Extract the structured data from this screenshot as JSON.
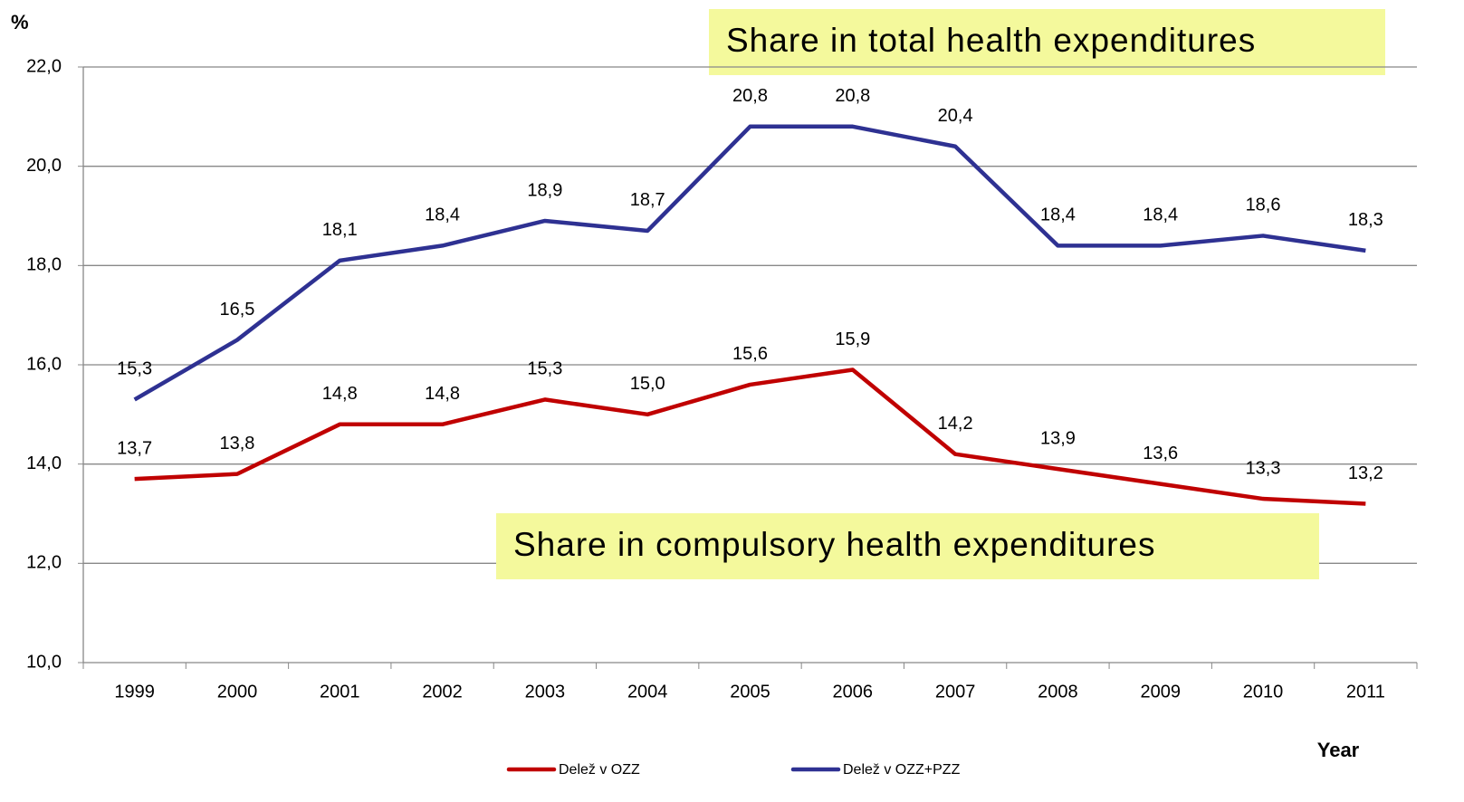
{
  "chart_data": {
    "type": "line",
    "y_label": "%",
    "x_label": "Year",
    "annotations": [
      "Share in total health expenditures",
      "Share in compulsory health expenditures"
    ],
    "categories": [
      "1999",
      "2000",
      "2001",
      "2002",
      "2003",
      "2004",
      "2005",
      "2006",
      "2007",
      "2008",
      "2009",
      "2010",
      "2011"
    ],
    "series": [
      {
        "name": "Delež v OZZ",
        "color": "#c00000",
        "values": [
          13.7,
          13.8,
          14.8,
          14.8,
          15.3,
          15.0,
          15.6,
          15.9,
          14.2,
          13.9,
          13.6,
          13.3,
          13.2
        ],
        "value_labels": [
          "13,7",
          "13,8",
          "14,8",
          "14,8",
          "15,3",
          "15,0",
          "15,6",
          "15,9",
          "14,2",
          "13,9",
          "13,6",
          "13,3",
          "13,2"
        ]
      },
      {
        "name": "Delež v OZZ+PZZ",
        "color": "#2e3192",
        "values": [
          15.3,
          16.5,
          18.1,
          18.4,
          18.9,
          18.7,
          20.8,
          20.8,
          20.4,
          18.4,
          18.4,
          18.6,
          18.3
        ],
        "value_labels": [
          "15,3",
          "16,5",
          "18,1",
          "18,4",
          "18,9",
          "18,7",
          "20,8",
          "20,8",
          "20,4",
          "18,4",
          "18,4",
          "18,6",
          "18,3"
        ]
      }
    ],
    "ylim": [
      10,
      22
    ],
    "yticks": [
      {
        "value": 10,
        "label": "10,0"
      },
      {
        "value": 12,
        "label": "12,0"
      },
      {
        "value": 14,
        "label": "14,0"
      },
      {
        "value": 16,
        "label": "16,0"
      },
      {
        "value": 18,
        "label": "18,0"
      },
      {
        "value": 20,
        "label": "20,0"
      },
      {
        "value": 22,
        "label": "22,0"
      }
    ],
    "grid": true,
    "legend": "bottom"
  }
}
